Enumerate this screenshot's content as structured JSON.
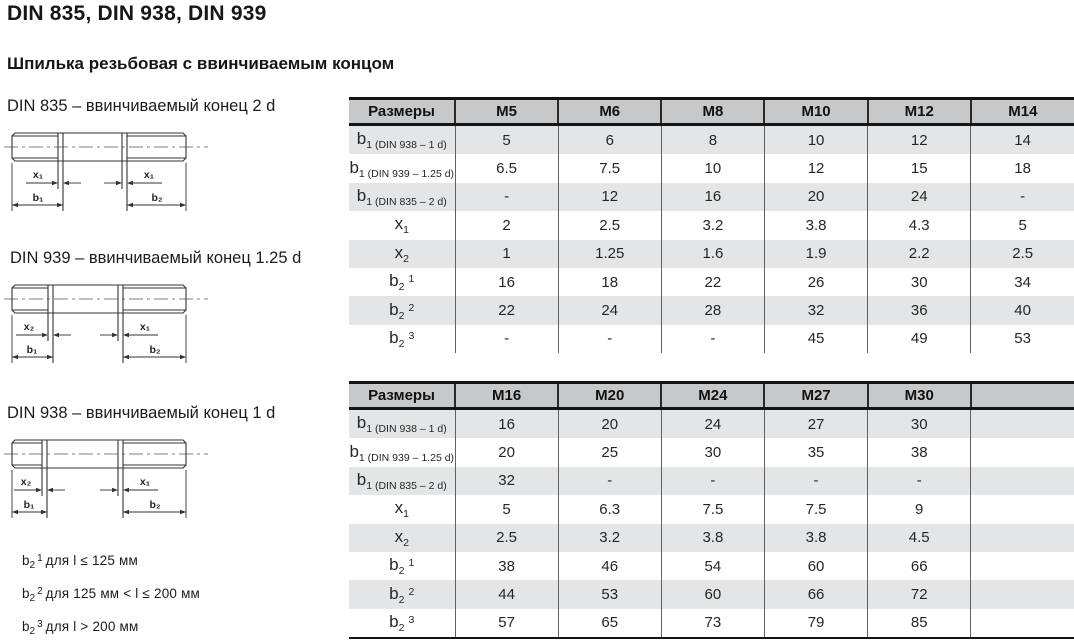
{
  "header": {
    "title": "DIN 835, DIN 938, DIN 939",
    "subtitle": "Шпилька резьбовая с ввинчиваемым концом"
  },
  "diagrams": [
    {
      "label": "DIN 835 – ввинчиваемый конец 2 d",
      "dims": {
        "x_left": "x₁",
        "x_right": "x₁",
        "b_left": "b₁",
        "b_right": "b₂"
      }
    },
    {
      "label": "DIN 939 – ввинчиваемый конец 1.25 d",
      "dims": {
        "x_left": "x₂",
        "x_right": "x₁",
        "b_left": "b₁",
        "b_right": "b₂"
      }
    },
    {
      "label": "DIN 938 – ввинчиваемый конец 1 d",
      "dims": {
        "x_left": "x₂",
        "x_right": "x₁",
        "b_left": "b₁",
        "b_right": "b₂"
      }
    }
  ],
  "notes": [
    {
      "base": "b",
      "sub": "2",
      "sup": "1",
      "text": "для l ≤ 125 мм"
    },
    {
      "base": "b",
      "sub": "2",
      "sup": "2",
      "text": "для 125 мм < l ≤ 200 мм"
    },
    {
      "base": "b",
      "sub": "2",
      "sup": "3",
      "text": "для l > 200 мм"
    }
  ],
  "tables": [
    {
      "header": [
        "Размеры",
        "M5",
        "M6",
        "M8",
        "M10",
        "M12",
        "M14"
      ],
      "rows": [
        {
          "label": {
            "base": "b",
            "sub": "1 (DIN 938 – 1 d)",
            "sup": ""
          },
          "values": [
            "5",
            "6",
            "8",
            "10",
            "12",
            "14"
          ]
        },
        {
          "label": {
            "base": "b",
            "sub": "1 (DIN 939 – 1.25 d)",
            "sup": ""
          },
          "values": [
            "6.5",
            "7.5",
            "10",
            "12",
            "15",
            "18"
          ]
        },
        {
          "label": {
            "base": "b",
            "sub": "1 (DIN 835 – 2 d)",
            "sup": ""
          },
          "values": [
            "-",
            "12",
            "16",
            "20",
            "24",
            "-"
          ]
        },
        {
          "label": {
            "base": "x",
            "sub": "1",
            "sup": ""
          },
          "values": [
            "2",
            "2.5",
            "3.2",
            "3.8",
            "4.3",
            "5"
          ]
        },
        {
          "label": {
            "base": "x",
            "sub": "2",
            "sup": ""
          },
          "values": [
            "1",
            "1.25",
            "1.6",
            "1.9",
            "2.2",
            "2.5"
          ]
        },
        {
          "label": {
            "base": "b",
            "sub": "2",
            "sup": "1"
          },
          "values": [
            "16",
            "18",
            "22",
            "26",
            "30",
            "34"
          ]
        },
        {
          "label": {
            "base": "b",
            "sub": "2",
            "sup": "2"
          },
          "values": [
            "22",
            "24",
            "28",
            "32",
            "36",
            "40"
          ]
        },
        {
          "label": {
            "base": "b",
            "sub": "2",
            "sup": "3"
          },
          "values": [
            "-",
            "-",
            "-",
            "45",
            "49",
            "53"
          ]
        }
      ]
    },
    {
      "header": [
        "Размеры",
        "M16",
        "M20",
        "M24",
        "M27",
        "M30",
        ""
      ],
      "rows": [
        {
          "label": {
            "base": "b",
            "sub": "1 (DIN 938 – 1 d)",
            "sup": ""
          },
          "values": [
            "16",
            "20",
            "24",
            "27",
            "30",
            ""
          ]
        },
        {
          "label": {
            "base": "b",
            "sub": "1 (DIN 939 – 1.25 d)",
            "sup": ""
          },
          "values": [
            "20",
            "25",
            "30",
            "35",
            "38",
            ""
          ]
        },
        {
          "label": {
            "base": "b",
            "sub": "1 (DIN 835 – 2 d)",
            "sup": ""
          },
          "values": [
            "32",
            "-",
            "-",
            "-",
            "-",
            ""
          ]
        },
        {
          "label": {
            "base": "x",
            "sub": "1",
            "sup": ""
          },
          "values": [
            "5",
            "6.3",
            "7.5",
            "7.5",
            "9",
            ""
          ]
        },
        {
          "label": {
            "base": "x",
            "sub": "2",
            "sup": ""
          },
          "values": [
            "2.5",
            "3.2",
            "3.8",
            "3.8",
            "4.5",
            ""
          ]
        },
        {
          "label": {
            "base": "b",
            "sub": "2",
            "sup": "1"
          },
          "values": [
            "38",
            "46",
            "54",
            "60",
            "66",
            ""
          ]
        },
        {
          "label": {
            "base": "b",
            "sub": "2",
            "sup": "2"
          },
          "values": [
            "44",
            "53",
            "60",
            "66",
            "72",
            ""
          ]
        },
        {
          "label": {
            "base": "b",
            "sub": "2",
            "sup": "3"
          },
          "values": [
            "57",
            "65",
            "73",
            "79",
            "85",
            ""
          ]
        }
      ]
    }
  ],
  "colors": {
    "header_bg": "#c7c8c9",
    "row_alt_bg": "#e4e5e6",
    "table_border": "#141414",
    "drawing_stroke": "#333333",
    "text": "#1d1d1d"
  }
}
